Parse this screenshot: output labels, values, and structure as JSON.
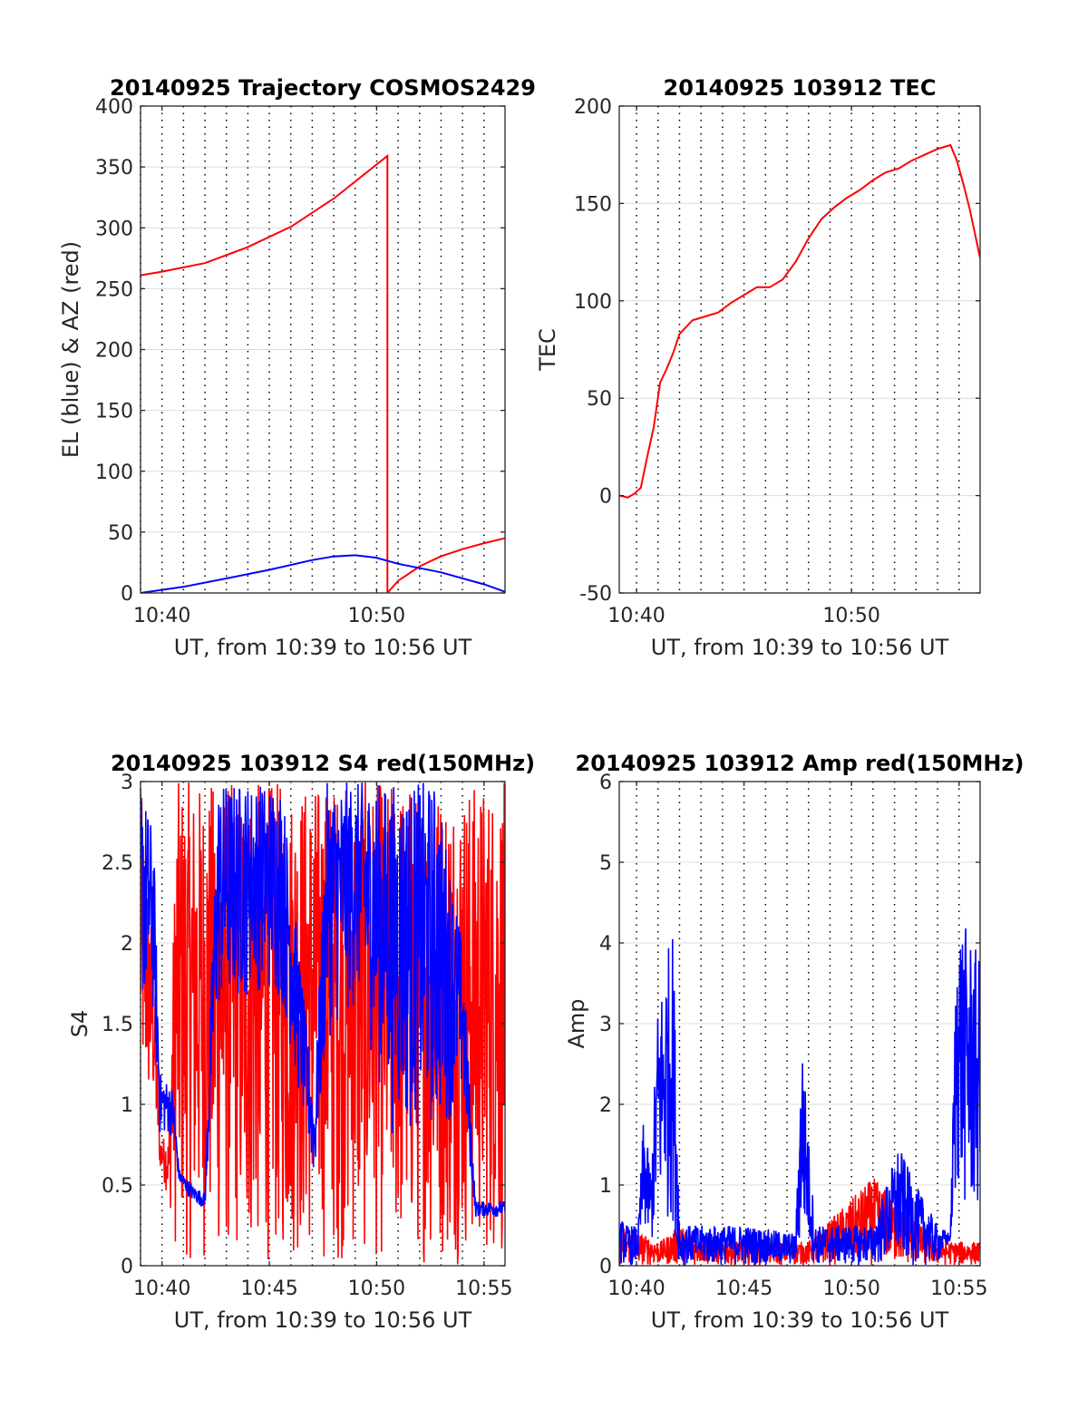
{
  "chart_data": [
    {
      "type": "line",
      "title": "20140925 Trajectory COSMOS2429",
      "xlabel": "UT, from 10:39 to 10:56 UT",
      "ylabel": "EL (blue) & AZ (red)",
      "xlim": [
        10.65,
        10.933
      ],
      "ylim": [
        0,
        400
      ],
      "xticks": [
        {
          "v": 10.6667,
          "label": "10:40"
        },
        {
          "v": 10.8333,
          "label": "10:50"
        }
      ],
      "yticks": [
        {
          "v": 0,
          "label": "0"
        },
        {
          "v": 50,
          "label": "50"
        },
        {
          "v": 100,
          "label": "100"
        },
        {
          "v": 150,
          "label": "150"
        },
        {
          "v": 200,
          "label": "200"
        },
        {
          "v": 250,
          "label": "250"
        },
        {
          "v": 300,
          "label": "300"
        },
        {
          "v": 350,
          "label": "350"
        },
        {
          "v": 400,
          "label": "400"
        }
      ],
      "grid": {
        "vertical_dotted_minutes": true,
        "horizontal": true
      },
      "series": [
        {
          "color": "#ff0000",
          "segments": [
            [
              [
                10.65,
                261
              ],
              [
                10.6667,
                264
              ],
              [
                10.7,
                271
              ],
              [
                10.733,
                284
              ],
              [
                10.767,
                301
              ],
              [
                10.8,
                324
              ],
              [
                10.8167,
                338
              ],
              [
                10.8333,
                352
              ],
              [
                10.8417,
                359
              ],
              [
                10.8417,
                0
              ]
            ],
            [
              [
                10.8417,
                0
              ],
              [
                10.85,
                10
              ],
              [
                10.867,
                22
              ],
              [
                10.883,
                30
              ],
              [
                10.9,
                36
              ],
              [
                10.917,
                41
              ],
              [
                10.933,
                45
              ]
            ]
          ]
        },
        {
          "color": "#0000ff",
          "segments": [
            [
              [
                10.65,
                0
              ],
              [
                10.683,
                5
              ],
              [
                10.717,
                12
              ],
              [
                10.75,
                19
              ],
              [
                10.783,
                27
              ],
              [
                10.8,
                30
              ],
              [
                10.8167,
                31
              ],
              [
                10.833,
                29
              ],
              [
                10.85,
                24
              ],
              [
                10.883,
                17
              ],
              [
                10.917,
                7
              ],
              [
                10.933,
                1
              ]
            ]
          ]
        }
      ]
    },
    {
      "type": "line",
      "title": "20140925 103912 TEC",
      "xlabel": "UT, from 10:39 to 10:56 UT",
      "ylabel": "TEC",
      "xlim": [
        10.6533,
        10.933
      ],
      "ylim": [
        -50,
        200
      ],
      "xticks": [
        {
          "v": 10.6667,
          "label": "10:40"
        },
        {
          "v": 10.8333,
          "label": "10:50"
        }
      ],
      "yticks": [
        {
          "v": -50,
          "label": "-50"
        },
        {
          "v": 0,
          "label": "0"
        },
        {
          "v": 50,
          "label": "50"
        },
        {
          "v": 100,
          "label": "100"
        },
        {
          "v": 150,
          "label": "150"
        },
        {
          "v": 200,
          "label": "200"
        }
      ],
      "grid": {
        "vertical_dotted_minutes": true,
        "horizontal": true
      },
      "series": [
        {
          "color": "#ff0000",
          "segments": [
            [
              [
                10.6533,
                0
              ],
              [
                10.66,
                -1
              ],
              [
                10.665,
                1
              ],
              [
                10.67,
                4
              ],
              [
                10.675,
                20
              ],
              [
                10.68,
                35
              ],
              [
                10.685,
                58
              ],
              [
                10.69,
                65
              ],
              [
                10.695,
                73
              ],
              [
                10.7,
                83
              ],
              [
                10.71,
                90
              ],
              [
                10.72,
                92
              ],
              [
                10.73,
                94
              ],
              [
                10.74,
                99
              ],
              [
                10.75,
                103
              ],
              [
                10.76,
                107
              ],
              [
                10.77,
                107
              ],
              [
                10.78,
                111
              ],
              [
                10.79,
                120
              ],
              [
                10.8,
                132
              ],
              [
                10.81,
                142
              ],
              [
                10.82,
                148
              ],
              [
                10.83,
                153
              ],
              [
                10.84,
                157
              ],
              [
                10.85,
                162
              ],
              [
                10.86,
                166
              ],
              [
                10.87,
                168
              ],
              [
                10.88,
                172
              ],
              [
                10.89,
                175
              ],
              [
                10.9,
                178
              ],
              [
                10.91,
                180
              ],
              [
                10.915,
                172
              ],
              [
                10.92,
                160
              ],
              [
                10.925,
                147
              ],
              [
                10.933,
                122
              ]
            ]
          ]
        }
      ]
    },
    {
      "type": "line",
      "title": "20140925 103912 S4 red(150MHz)",
      "xlabel": "UT, from 10:39 to 10:56 UT",
      "ylabel": "S4",
      "xlim": [
        10.65,
        10.933
      ],
      "ylim": [
        0,
        3
      ],
      "xticks": [
        {
          "v": 10.6667,
          "label": "10:40"
        },
        {
          "v": 10.75,
          "label": "10:45"
        },
        {
          "v": 10.8333,
          "label": "10:50"
        },
        {
          "v": 10.9167,
          "label": "10:55"
        }
      ],
      "yticks": [
        {
          "v": 0,
          "label": "0"
        },
        {
          "v": 0.5,
          "label": "0.5"
        },
        {
          "v": 1,
          "label": "1"
        },
        {
          "v": 1.5,
          "label": "1.5"
        },
        {
          "v": 2,
          "label": "2"
        },
        {
          "v": 2.5,
          "label": "2.5"
        },
        {
          "v": 3,
          "label": "3"
        }
      ],
      "grid": {
        "vertical_dotted_minutes": true,
        "horizontal": true
      },
      "series": [
        {
          "color": "#ff0000",
          "style": "noisy",
          "envelope": [
            [
              10.65,
              0.9,
              3
            ],
            [
              10.66,
              0.9,
              2.0
            ],
            [
              10.665,
              0.6,
              0.8
            ],
            [
              10.672,
              0.4,
              0.8
            ],
            [
              10.678,
              0,
              3
            ],
            [
              10.69,
              0,
              3
            ],
            [
              10.71,
              0,
              3
            ],
            [
              10.75,
              0,
              3
            ],
            [
              10.79,
              0,
              3
            ],
            [
              10.82,
              0,
              3
            ],
            [
              10.83,
              0,
              3
            ],
            [
              10.85,
              0,
              3
            ],
            [
              10.87,
              0,
              3
            ],
            [
              10.9,
              0,
              3
            ],
            [
              10.933,
              0,
              3
            ]
          ]
        },
        {
          "color": "#0000ff",
          "style": "noisy",
          "envelope": [
            [
              10.65,
              1.6,
              3
            ],
            [
              10.66,
              1.5,
              2.7
            ],
            [
              10.665,
              0.8,
              1.2
            ],
            [
              10.675,
              0.8,
              1.1
            ],
            [
              10.68,
              0.5,
              0.6
            ],
            [
              10.69,
              0.4,
              0.5
            ],
            [
              10.7,
              0.35,
              0.45
            ],
            [
              10.705,
              0.9,
              1.8
            ],
            [
              10.71,
              1.5,
              3
            ],
            [
              10.74,
              1.7,
              3
            ],
            [
              10.76,
              1.6,
              3
            ],
            [
              10.785,
              0.5,
              1.0
            ],
            [
              10.795,
              1.4,
              3
            ],
            [
              10.82,
              1.6,
              3
            ],
            [
              10.845,
              0.8,
              3
            ],
            [
              10.86,
              0.8,
              3
            ],
            [
              10.88,
              0.8,
              3
            ],
            [
              10.9,
              1.0,
              2.0
            ],
            [
              10.91,
              0.3,
              0.4
            ],
            [
              10.933,
              0.3,
              0.4
            ]
          ]
        }
      ]
    },
    {
      "type": "line",
      "title": "20140925 103912 Amp red(150MHz)",
      "xlabel": "UT, from 10:39 to 10:56 UT",
      "ylabel": "Amp",
      "xlim": [
        10.6533,
        10.933
      ],
      "ylim": [
        0,
        6
      ],
      "xticks": [
        {
          "v": 10.6667,
          "label": "10:40"
        },
        {
          "v": 10.75,
          "label": "10:45"
        },
        {
          "v": 10.8333,
          "label": "10:50"
        },
        {
          "v": 10.9167,
          "label": "10:55"
        }
      ],
      "yticks": [
        {
          "v": 0,
          "label": "0"
        },
        {
          "v": 1,
          "label": "1"
        },
        {
          "v": 2,
          "label": "2"
        },
        {
          "v": 3,
          "label": "3"
        },
        {
          "v": 4,
          "label": "4"
        },
        {
          "v": 5,
          "label": "5"
        },
        {
          "v": 6,
          "label": "6"
        }
      ],
      "grid": {
        "vertical_dotted_minutes": true,
        "horizontal": true
      },
      "series": [
        {
          "color": "#ff0000",
          "style": "noisy",
          "envelope": [
            [
              10.6533,
              0,
              0.5
            ],
            [
              10.67,
              0,
              0.4
            ],
            [
              10.685,
              0,
              0.3
            ],
            [
              10.7,
              0,
              0.5
            ],
            [
              10.71,
              0,
              0.4
            ],
            [
              10.75,
              0,
              0.3
            ],
            [
              10.8,
              0,
              0.3
            ],
            [
              10.85,
              0,
              1.1
            ],
            [
              10.9,
              0,
              0.3
            ],
            [
              10.933,
              0,
              0.3
            ]
          ]
        },
        {
          "color": "#0000ff",
          "style": "noisy",
          "envelope": [
            [
              10.6533,
              0,
              0.6
            ],
            [
              10.66,
              0,
              0.5
            ],
            [
              10.668,
              0,
              0.5
            ],
            [
              10.672,
              0.4,
              1.8
            ],
            [
              10.678,
              0.2,
              1.2
            ],
            [
              10.683,
              0.5,
              3.2
            ],
            [
              10.69,
              0.5,
              3.9
            ],
            [
              10.695,
              0.5,
              4.2
            ],
            [
              10.7,
              0,
              0.5
            ],
            [
              10.75,
              0,
              0.5
            ],
            [
              10.79,
              0,
              0.4
            ],
            [
              10.795,
              0.3,
              2.9
            ],
            [
              10.8,
              0.2,
              1.6
            ],
            [
              10.805,
              0,
              0.5
            ],
            [
              10.85,
              0,
              0.5
            ],
            [
              10.87,
              0,
              1.5
            ],
            [
              10.88,
              0,
              1.1
            ],
            [
              10.9,
              0,
              0.5
            ],
            [
              10.91,
              0.3,
              0.4
            ],
            [
              10.915,
              0.8,
              4.4
            ],
            [
              10.925,
              0.5,
              4.1
            ],
            [
              10.933,
              0.5,
              3.8
            ]
          ]
        }
      ]
    }
  ]
}
